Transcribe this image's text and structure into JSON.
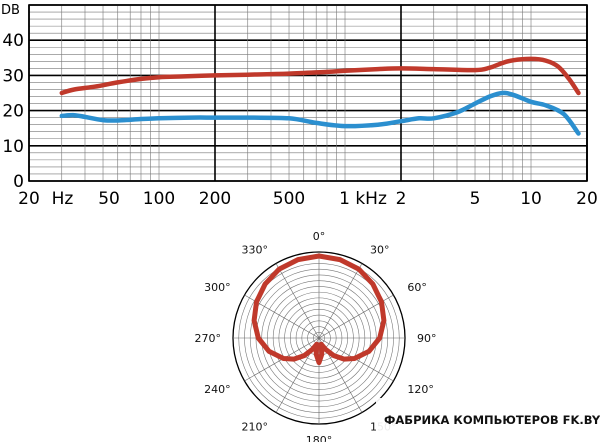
{
  "chart_data": [
    {
      "type": "line",
      "ylabel": "DB",
      "xscale": "log",
      "xlim": [
        20,
        20000
      ],
      "ylim": [
        0,
        50
      ],
      "grid": true,
      "ytick_labels": [
        "0",
        "10",
        "20",
        "30",
        "40"
      ],
      "xtick_labels": [
        "20",
        "Hz",
        "50",
        "100",
        "200",
        "500",
        "1 kHz",
        "2",
        "5",
        "10",
        "20"
      ],
      "series": [
        {
          "color": "#c0392b",
          "x": [
            30,
            35,
            45,
            60,
            80,
            100,
            130,
            200,
            300,
            500,
            800,
            1000,
            1500,
            2000,
            3000,
            5000,
            6000,
            7000,
            8000,
            10000,
            12000,
            14000,
            16000,
            18000
          ],
          "y": [
            25,
            26,
            26.8,
            28,
            29,
            29.5,
            29.7,
            30,
            30.2,
            30.5,
            31,
            31.3,
            31.8,
            32,
            31.8,
            31.5,
            32.2,
            33.5,
            34.3,
            34.7,
            34.2,
            32.5,
            29,
            25
          ]
        },
        {
          "color": "#2b8fcf",
          "x": [
            30,
            35,
            40,
            50,
            60,
            80,
            100,
            150,
            200,
            300,
            500,
            700,
            1000,
            1500,
            2000,
            2500,
            3000,
            4000,
            5000,
            6000,
            7000,
            8000,
            10000,
            12000,
            15000,
            18000
          ],
          "y": [
            18.5,
            18.7,
            18.2,
            17.3,
            17.2,
            17.6,
            17.8,
            18,
            18,
            18,
            17.8,
            16.5,
            15.6,
            16,
            17,
            17.8,
            17.8,
            19.5,
            22,
            24,
            25,
            24.5,
            22.5,
            21.5,
            19,
            13.5
          ]
        }
      ]
    },
    {
      "type": "polar",
      "angle_labels": [
        "0°",
        "30°",
        "60°",
        "90°",
        "120°",
        "150°",
        "180°",
        "210°",
        "240°",
        "270°",
        "300°",
        "330°"
      ],
      "pattern": "supercardioid",
      "series": [
        {
          "color": "#c0392b",
          "angle_deg": [
            0,
            15,
            30,
            45,
            60,
            75,
            90,
            105,
            120,
            130,
            140,
            150,
            160,
            170,
            180,
            190,
            200,
            210,
            220,
            230,
            240,
            255,
            270,
            285,
            300,
            315,
            330,
            345,
            360
          ],
          "radius": [
            1.0,
            0.99,
            0.97,
            0.93,
            0.88,
            0.82,
            0.74,
            0.63,
            0.5,
            0.4,
            0.28,
            0.16,
            0.08,
            0.2,
            0.3,
            0.2,
            0.08,
            0.16,
            0.28,
            0.4,
            0.5,
            0.63,
            0.74,
            0.82,
            0.88,
            0.93,
            0.97,
            0.99,
            1.0
          ]
        }
      ]
    }
  ],
  "watermark": {
    "text": "ФАБРИКА КОМПЬЮТЕРОВ FK.BY"
  }
}
